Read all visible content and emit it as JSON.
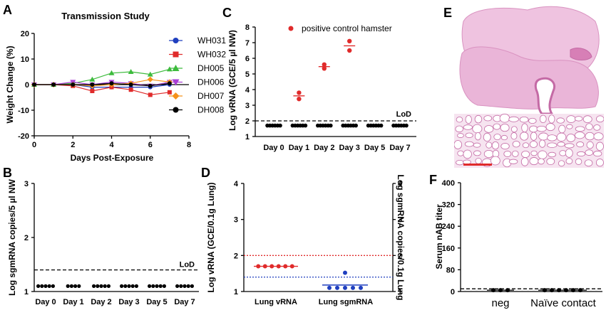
{
  "panel_labels": {
    "a": "A",
    "b": "B",
    "c": "C",
    "d": "D",
    "e": "E",
    "f": "F"
  },
  "lod_label": "LoD",
  "colors": {
    "WH031": "#1f3fbf",
    "WH032": "#e02b2b",
    "DH005": "#3dbb3d",
    "DH006": "#a93fd6",
    "DH007": "#f5921b",
    "DH008": "#000000",
    "red": "#e02b2b",
    "blue": "#1f3fbf",
    "tissue": "#e8a6cf",
    "tissue_dark": "#c46aa5"
  },
  "chart_data": [
    {
      "id": "A",
      "type": "line",
      "title": "Transmission Study",
      "xlabel": "Days Post-Exposure",
      "ylabel": "Weight Change (%)",
      "xlim": [
        0,
        8
      ],
      "ylim": [
        -20,
        20
      ],
      "xticks": [
        "0",
        "2",
        "4",
        "6",
        "8"
      ],
      "yticks": [
        "-20",
        "-10",
        "0",
        "10",
        "20"
      ],
      "reference_line_y": 0,
      "x": [
        0,
        1,
        2,
        3,
        4,
        5,
        6,
        7
      ],
      "series": [
        {
          "name": "WH031",
          "marker": "circle",
          "values": [
            0,
            0,
            0,
            -1,
            -1,
            -1,
            -1,
            0
          ]
        },
        {
          "name": "WH032",
          "marker": "square",
          "values": [
            0,
            0,
            -0.5,
            -2.5,
            -1,
            -2,
            -4,
            -3
          ]
        },
        {
          "name": "DH005",
          "marker": "triangle-up",
          "values": [
            0,
            0,
            0.5,
            2,
            4.5,
            5,
            4,
            6
          ]
        },
        {
          "name": "DH006",
          "marker": "triangle-down",
          "values": [
            0,
            0,
            1,
            0,
            1,
            0.5,
            -0.5,
            1
          ]
        },
        {
          "name": "DH007",
          "marker": "diamond",
          "values": [
            0,
            0,
            0,
            -0.5,
            0,
            0.5,
            2,
            1
          ]
        },
        {
          "name": "DH008",
          "marker": "circle",
          "values": [
            0,
            0,
            0,
            0,
            0.5,
            0,
            -0.5,
            0.5
          ]
        }
      ]
    },
    {
      "id": "B",
      "type": "scatter",
      "ylabel": "Log sgmRNA copies/5 µl NW",
      "categories": [
        "Day 0",
        "Day 1",
        "Day 2",
        "Day 3",
        "Day 5",
        "Day 7"
      ],
      "counts": [
        5,
        4,
        5,
        5,
        5,
        5
      ],
      "values": [
        1.1,
        1.1,
        1.1,
        1.1,
        1.1,
        1.1
      ],
      "ylim": [
        1,
        3
      ],
      "yticks": [
        "1",
        "2",
        "3"
      ],
      "lod": 1.4
    },
    {
      "id": "C",
      "type": "scatter",
      "ylabel": "Log vRNA (GCE/5 µl NW)",
      "categories": [
        "Day 0",
        "Day 1",
        "Day 2",
        "Day 3",
        "Day 5",
        "Day 7"
      ],
      "ylim": [
        1,
        8
      ],
      "yticks": [
        "1",
        "2",
        "3",
        "4",
        "5",
        "6",
        "7",
        "8"
      ],
      "lod": 2,
      "below_lod": {
        "value": 1.7,
        "counts": [
          6,
          6,
          6,
          6,
          6,
          6
        ]
      },
      "positive_control": {
        "name": "positive control hamster",
        "points": [
          [
            1,
            3.8
          ],
          [
            1,
            3.4
          ],
          [
            2,
            5.6
          ],
          [
            2,
            5.35
          ],
          [
            3,
            7.1
          ],
          [
            3,
            6.5
          ]
        ],
        "means": [
          [
            1,
            3.6
          ],
          [
            2,
            5.47
          ],
          [
            3,
            6.8
          ]
        ]
      }
    },
    {
      "id": "D",
      "type": "scatter",
      "ylabel": "Log vRNA (GCE/0.1g Lung)",
      "ylabel_right": "Log sgmRNA copies/0.1g Lung",
      "categories": [
        "Lung vRNA",
        "Lung sgmRNA"
      ],
      "ylim": [
        1,
        4
      ],
      "yticks": [
        "1",
        "2",
        "3",
        "4"
      ],
      "lod_vrna": 2,
      "lod_sgmrna": 1.4,
      "vrna": {
        "values": [
          1.7,
          1.7,
          1.7,
          1.7,
          1.7,
          1.7
        ],
        "mean": 1.7
      },
      "sgmrna": {
        "values": [
          1.52,
          1.1,
          1.1,
          1.1,
          1.1,
          1.1
        ],
        "mean": 1.18
      }
    },
    {
      "id": "F",
      "type": "scatter",
      "ylabel": "Serum nAB titer",
      "categories": [
        "neg",
        "Naïve contact"
      ],
      "ylim": [
        0,
        400
      ],
      "yticks": [
        "0",
        "80",
        "160",
        "240",
        "320",
        "400"
      ],
      "lod": 10,
      "counts": [
        3,
        6
      ],
      "value": 5
    }
  ]
}
